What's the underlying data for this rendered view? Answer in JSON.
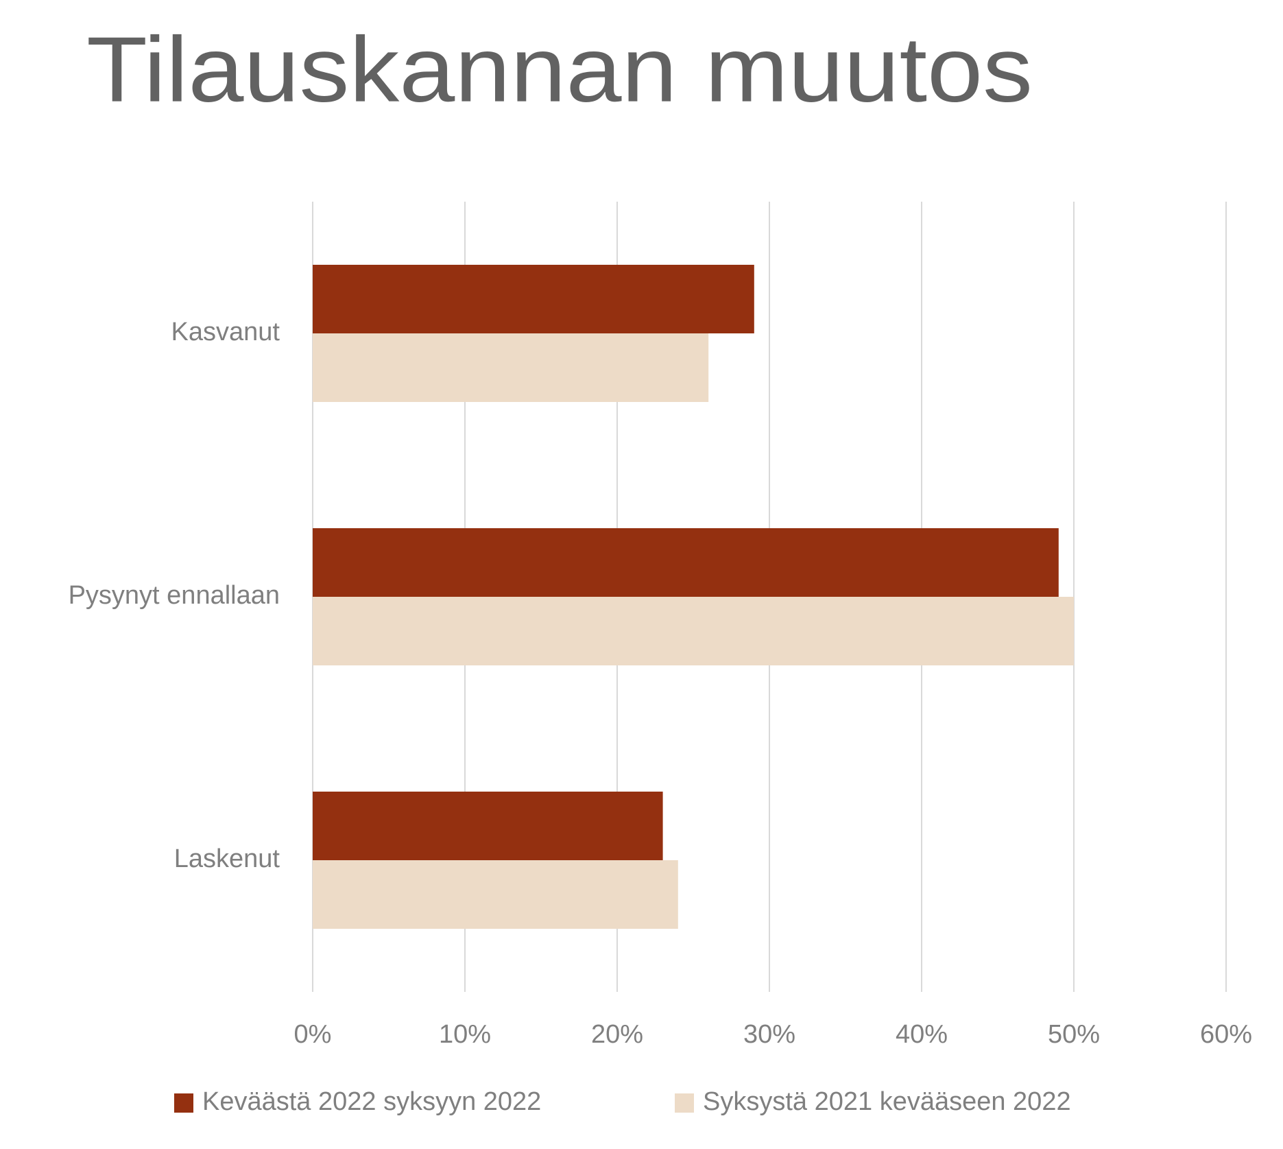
{
  "chart_data": {
    "type": "hbar",
    "title": "Tilauskannan muutos",
    "categories": [
      "Kasvanut",
      "Pysynyt ennallaan",
      "Laskenut"
    ],
    "series": [
      {
        "name": "Keväästä 2022 syksyyn 2022",
        "color": "#943010",
        "values": [
          29,
          49,
          23
        ]
      },
      {
        "name": "Syksystä 2021 kevääseen 2022",
        "color": "#eddbc7",
        "values": [
          26,
          50,
          24
        ]
      }
    ],
    "xlim": [
      0,
      60
    ],
    "xticks": [
      {
        "value": 0,
        "label": "0%"
      },
      {
        "value": 10,
        "label": "10%"
      },
      {
        "value": 20,
        "label": "20%"
      },
      {
        "value": 30,
        "label": "30%"
      },
      {
        "value": 40,
        "label": "40%"
      },
      {
        "value": 50,
        "label": "50%"
      },
      {
        "value": 60,
        "label": "60%"
      }
    ],
    "grid": true,
    "legend": "bottom"
  }
}
